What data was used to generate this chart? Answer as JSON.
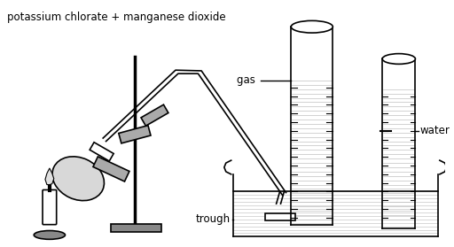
{
  "title": "potassium chlorate + manganese dioxide",
  "labels": {
    "gas": "gas",
    "water": "water",
    "trough": "trough"
  },
  "bg_color": "#ffffff",
  "line_color": "#000000",
  "gray_color": "#aaaaaa",
  "gray_dark": "#888888",
  "water_color": "#d0d0d0",
  "figsize": [
    5.12,
    2.79
  ],
  "dpi": 100
}
